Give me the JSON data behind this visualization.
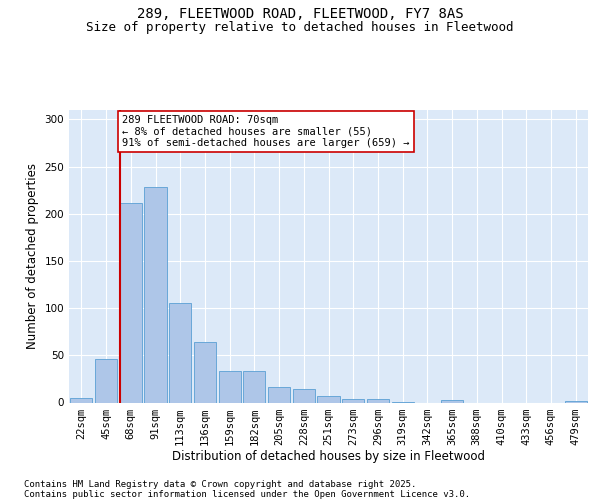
{
  "title": "289, FLEETWOOD ROAD, FLEETWOOD, FY7 8AS",
  "subtitle": "Size of property relative to detached houses in Fleetwood",
  "xlabel": "Distribution of detached houses by size in Fleetwood",
  "ylabel": "Number of detached properties",
  "categories": [
    "22sqm",
    "45sqm",
    "68sqm",
    "91sqm",
    "113sqm",
    "136sqm",
    "159sqm",
    "182sqm",
    "205sqm",
    "228sqm",
    "251sqm",
    "273sqm",
    "296sqm",
    "319sqm",
    "342sqm",
    "365sqm",
    "388sqm",
    "410sqm",
    "433sqm",
    "456sqm",
    "479sqm"
  ],
  "values": [
    5,
    46,
    211,
    228,
    105,
    64,
    33,
    33,
    16,
    14,
    7,
    4,
    4,
    1,
    0,
    3,
    0,
    0,
    0,
    0,
    2
  ],
  "bar_color": "#aec6e8",
  "bar_edge_color": "#5a9fd4",
  "vline_bin_index": 2,
  "vline_color": "#cc0000",
  "annotation_text": "289 FLEETWOOD ROAD: 70sqm\n← 8% of detached houses are smaller (55)\n91% of semi-detached houses are larger (659) →",
  "annotation_box_color": "#ffffff",
  "annotation_box_edge": "#cc0000",
  "ylim": [
    0,
    310
  ],
  "yticks": [
    0,
    50,
    100,
    150,
    200,
    250,
    300
  ],
  "bg_color": "#dce9f8",
  "footer_text": "Contains HM Land Registry data © Crown copyright and database right 2025.\nContains public sector information licensed under the Open Government Licence v3.0.",
  "title_fontsize": 10,
  "subtitle_fontsize": 9,
  "xlabel_fontsize": 8.5,
  "ylabel_fontsize": 8.5,
  "tick_fontsize": 7.5,
  "annotation_fontsize": 7.5,
  "footer_fontsize": 6.5
}
